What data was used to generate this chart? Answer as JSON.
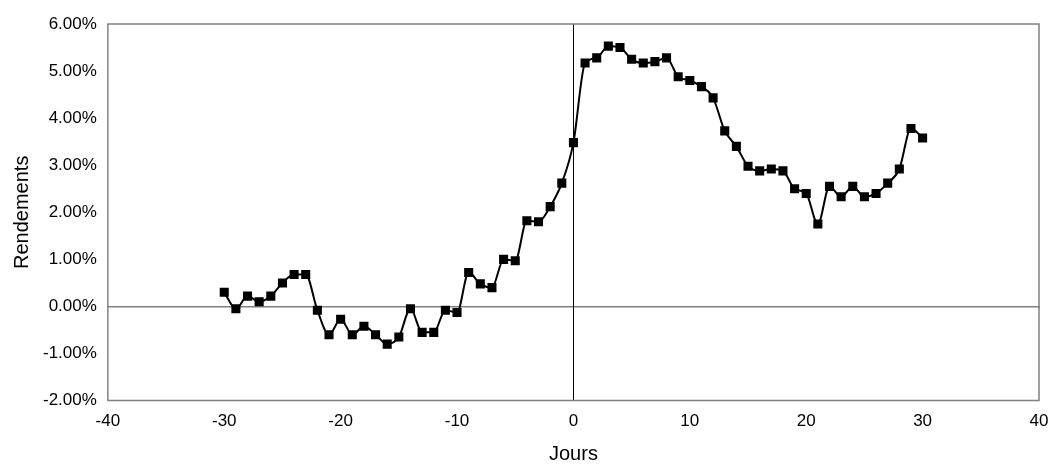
{
  "chart_data": {
    "type": "line",
    "xlabel": "Jours",
    "ylabel": "Rendements",
    "x": [
      -30,
      -29,
      -28,
      -27,
      -26,
      -25,
      -24,
      -23,
      -22,
      -21,
      -20,
      -19,
      -18,
      -17,
      -16,
      -15,
      -14,
      -13,
      -12,
      -11,
      -10,
      -9,
      -8,
      -7,
      -6,
      -5,
      -4,
      -3,
      -2,
      -1,
      0,
      1,
      2,
      3,
      4,
      5,
      6,
      7,
      8,
      9,
      10,
      11,
      12,
      13,
      14,
      15,
      16,
      17,
      18,
      19,
      20,
      21,
      22,
      23,
      24,
      25,
      26,
      27,
      28,
      29,
      30
    ],
    "series": [
      {
        "color": "#000000",
        "values": [
          0.3,
          -0.05,
          0.22,
          0.1,
          0.22,
          0.5,
          0.68,
          0.68,
          -0.08,
          -0.6,
          -0.27,
          -0.6,
          -0.42,
          -0.6,
          -0.8,
          -0.65,
          -0.05,
          -0.55,
          -0.55,
          -0.08,
          -0.13,
          0.72,
          0.48,
          0.4,
          1.0,
          0.97,
          1.82,
          1.8,
          2.12,
          2.62,
          3.48,
          5.17,
          5.28,
          5.53,
          5.5,
          5.25,
          5.17,
          5.2,
          5.28,
          4.88,
          4.8,
          4.67,
          4.43,
          3.73,
          3.4,
          2.98,
          2.88,
          2.92,
          2.88,
          2.5,
          2.4,
          1.75,
          2.55,
          2.33,
          2.55,
          2.33,
          2.4,
          2.62,
          2.92,
          3.78,
          3.58
        ]
      }
    ],
    "xlim": [
      -40,
      40
    ],
    "xticks": [
      -40,
      -30,
      -20,
      -10,
      0,
      10,
      20,
      30,
      40
    ],
    "ylim": [
      -2,
      6
    ],
    "yticks": [
      {
        "value": -2,
        "label": "-2.00%"
      },
      {
        "value": -1,
        "label": "-1.00%"
      },
      {
        "value": 0,
        "label": "0.00%"
      },
      {
        "value": 1,
        "label": "1.00%"
      },
      {
        "value": 2,
        "label": "2.00%"
      },
      {
        "value": 3,
        "label": "3.00%"
      },
      {
        "value": 4,
        "label": "4.00%"
      },
      {
        "value": 5,
        "label": "5.00%"
      },
      {
        "value": 6,
        "label": "6.00%"
      }
    ],
    "marker": "square",
    "line_style": "solid",
    "grid": false,
    "legend": false
  }
}
